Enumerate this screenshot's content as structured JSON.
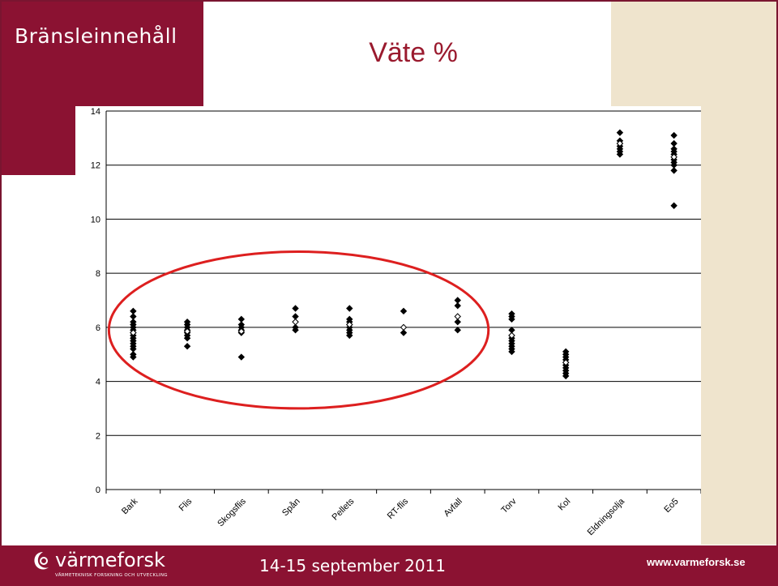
{
  "slide": {
    "section_title": "Bränsleinnehåll",
    "footer_date": "14-15 september 2011",
    "footer_url": "www.varmeforsk.se",
    "logo_name": "värmeforsk",
    "logo_subtitle": "VÄRMETEKNISK FORSKNING OCH UTVECKLING",
    "colors": {
      "brand": "#8b1232",
      "right_panel": "#efe4cd",
      "title_text": "#9a1a2e",
      "highlight_ring": "#dd1f1f"
    }
  },
  "chart_data": {
    "type": "scatter",
    "title": "Väte %",
    "xlabel": "",
    "ylabel": "",
    "ylim": [
      0,
      14
    ],
    "yticks": [
      0,
      2,
      4,
      6,
      8,
      10,
      12,
      14
    ],
    "grid": true,
    "categories": [
      "Bark",
      "Flis",
      "Skogsflis",
      "Spån",
      "Pellets",
      "RT-flis",
      "Avfall",
      "Torv",
      "Kol",
      "Eldningsolja",
      "Eo5"
    ],
    "values": [
      [
        6.6,
        6.4,
        6.2,
        6.1,
        6.0,
        5.9,
        5.8,
        5.7,
        5.6,
        5.5,
        5.4,
        5.3,
        5.2,
        5.0,
        4.9
      ],
      [
        6.2,
        6.1,
        6.0,
        5.9,
        5.8,
        5.7,
        5.6,
        5.3
      ],
      [
        6.3,
        6.1,
        6.0,
        5.9,
        5.8,
        4.9
      ],
      [
        6.7,
        6.4,
        6.2,
        6.0,
        5.9
      ],
      [
        6.7,
        6.3,
        6.2,
        6.1,
        6.0,
        5.9,
        5.8,
        5.7
      ],
      [
        6.6,
        5.8
      ],
      [
        7.0,
        6.8,
        6.2,
        5.9
      ],
      [
        6.5,
        6.4,
        6.3,
        5.9,
        5.7,
        5.6,
        5.5,
        5.4,
        5.3,
        5.2,
        5.1
      ],
      [
        5.1,
        5.0,
        4.9,
        4.8,
        4.7,
        4.6,
        4.5,
        4.4,
        4.3,
        4.2
      ],
      [
        13.2,
        12.9,
        12.8,
        12.7,
        12.6,
        12.5,
        12.4
      ],
      [
        13.1,
        12.8,
        12.6,
        12.5,
        12.4,
        12.3,
        12.2,
        12.1,
        12.0,
        11.8,
        10.5
      ]
    ],
    "means": [
      5.8,
      5.85,
      5.85,
      6.2,
      6.1,
      6.0,
      6.4,
      5.7,
      4.7,
      12.8,
      12.3
    ],
    "marker_style": {
      "samples": "filled-diamond",
      "mean": "hollow-diamond"
    },
    "highlight_ring": "red ellipse around the categories Bark through Avfall"
  }
}
